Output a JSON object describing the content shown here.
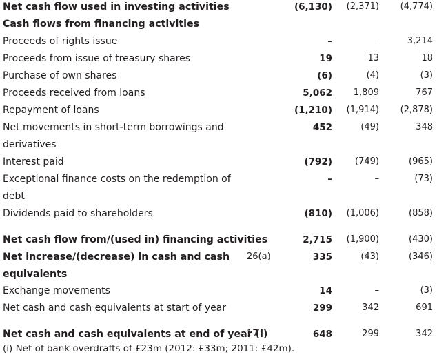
{
  "rows": [
    {
      "label": "Net cash flow used in investing activities",
      "bold": true,
      "note": "",
      "v1": "(6,130)",
      "v2": "(2,371)",
      "v3": "(4,774)"
    },
    {
      "label": "Cash flows from financing activities",
      "bold": true,
      "note": "",
      "v1": "",
      "v2": "",
      "v3": ""
    },
    {
      "label": "Proceeds of rights issue",
      "bold": false,
      "note": "",
      "v1": "–",
      "v2": "–",
      "v3": "3,214"
    },
    {
      "label": "Proceeds from issue of treasury shares",
      "bold": false,
      "note": "",
      "v1": "19",
      "v2": "13",
      "v3": "18"
    },
    {
      "label": "Purchase of own shares",
      "bold": false,
      "note": "",
      "v1": "(6)",
      "v2": "(4)",
      "v3": "(3)"
    },
    {
      "label": "Proceeds received from loans",
      "bold": false,
      "note": "",
      "v1": "5,062",
      "v2": "1,809",
      "v3": "767"
    },
    {
      "label": "Repayment of loans",
      "bold": false,
      "note": "",
      "v1": "(1,210)",
      "v2": "(1,914)",
      "v3": "(2,878)"
    },
    {
      "label": "Net movements in short-term borrowings and",
      "bold": false,
      "note": "",
      "v1": "452",
      "v2": "(49)",
      "v3": "348"
    },
    {
      "label": "derivatives",
      "bold": false,
      "note": "",
      "v1": "",
      "v2": "",
      "v3": ""
    },
    {
      "label": "Interest paid",
      "bold": false,
      "note": "",
      "v1": "(792)",
      "v2": "(749)",
      "v3": "(965)"
    },
    {
      "label": "Exceptional finance costs on the redemption of",
      "bold": false,
      "note": "",
      "v1": "–",
      "v2": "–",
      "v3": "(73)"
    },
    {
      "label": "debt",
      "bold": false,
      "note": "",
      "v1": "",
      "v2": "",
      "v3": ""
    },
    {
      "label": "Dividends paid to shareholders",
      "bold": false,
      "note": "",
      "v1": "(810)",
      "v2": "(1,006)",
      "v3": "(858)"
    },
    {
      "label": "Net cash flow from/(used in) financing activities",
      "bold": true,
      "note": "",
      "v1": "2,715",
      "v2": "(1,900)",
      "v3": "(430)"
    },
    {
      "label": "Net increase/(decrease) in cash and cash",
      "bold": true,
      "note": "26(a)",
      "v1": "335",
      "v2": "(43)",
      "v3": "(346)"
    },
    {
      "label": "equivalents",
      "bold": true,
      "note": "",
      "v1": "",
      "v2": "",
      "v3": ""
    },
    {
      "label": "Exchange movements",
      "bold": false,
      "note": "",
      "v1": "14",
      "v2": "–",
      "v3": "(3)"
    },
    {
      "label": "Net cash and cash equivalents at start of year",
      "bold": false,
      "note": "",
      "v1": "299",
      "v2": "342",
      "v3": "691"
    },
    {
      "label": "Net cash and cash equivalents at end of year (i)",
      "bold": true,
      "note": "17",
      "v1": "648",
      "v2": "299",
      "v3": "342"
    }
  ],
  "footnote": "(i) Net of bank overdrafts of £23m (2012: £33m; 2011: £42m)."
}
